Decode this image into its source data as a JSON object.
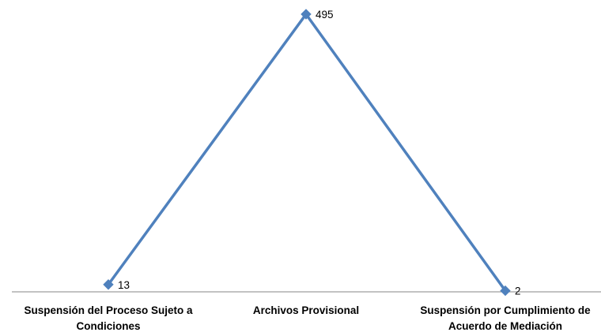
{
  "chart_data": {
    "type": "line",
    "categories": [
      [
        "Suspensión del Proceso Sujeto a",
        "Condiciones"
      ],
      [
        "Archivos Provisional"
      ],
      [
        "Suspensión por Cumplimiento de",
        "Acuerdo de Mediación"
      ]
    ],
    "series": [
      {
        "values": [
          13,
          495,
          2
        ],
        "data_labels": [
          "13",
          "495",
          "2"
        ],
        "color": "#4F81BD"
      }
    ],
    "ylim": [
      0,
      495
    ],
    "grid": false,
    "legend": "none",
    "axis_color": "#868686"
  }
}
